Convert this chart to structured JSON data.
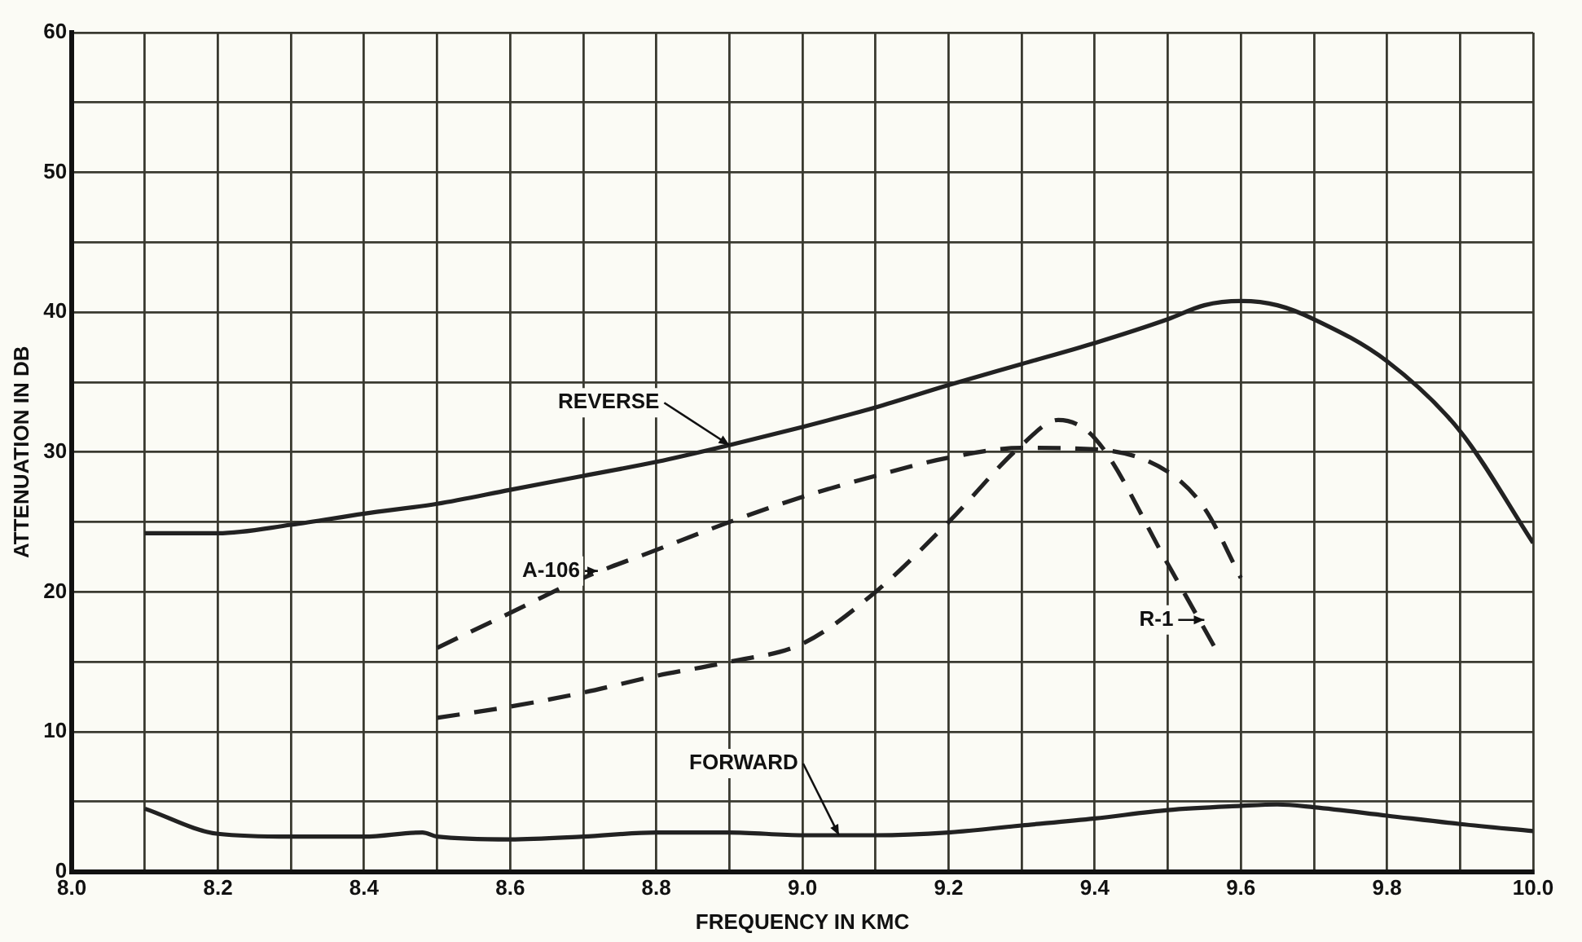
{
  "chart_data": {
    "type": "line",
    "xlabel": "FREQUENCY IN KMC",
    "ylabel": "ATTENUATION IN DB",
    "xlim": [
      8.0,
      10.0
    ],
    "xticks": [
      {
        "value": 8.0,
        "label": "8.0"
      },
      {
        "value": 8.1,
        "label": null
      },
      {
        "value": 8.2,
        "label": "8.2"
      },
      {
        "value": 8.3,
        "label": null
      },
      {
        "value": 8.4,
        "label": "8.4"
      },
      {
        "value": 8.5,
        "label": null
      },
      {
        "value": 8.6,
        "label": "8.6"
      },
      {
        "value": 8.7,
        "label": null
      },
      {
        "value": 8.8,
        "label": "8.8"
      },
      {
        "value": 8.9,
        "label": null
      },
      {
        "value": 9.0,
        "label": "9.0"
      },
      {
        "value": 9.1,
        "label": null
      },
      {
        "value": 9.2,
        "label": "9.2"
      },
      {
        "value": 9.3,
        "label": null
      },
      {
        "value": 9.4,
        "label": "9.4"
      },
      {
        "value": 9.5,
        "label": null
      },
      {
        "value": 9.6,
        "label": "9.6"
      },
      {
        "value": 9.7,
        "label": null
      },
      {
        "value": 9.8,
        "label": "9.8"
      },
      {
        "value": 9.9,
        "label": null
      },
      {
        "value": 10.0,
        "label": "10.0"
      }
    ],
    "ylim": [
      0,
      60
    ],
    "yticks": [
      0,
      {
        "value": 5,
        "label": null
      },
      10,
      {
        "value": 15,
        "label": null
      },
      20,
      {
        "value": 25,
        "label": null
      },
      30,
      {
        "value": 35,
        "label": null
      },
      40,
      {
        "value": 45,
        "label": null
      },
      50,
      {
        "value": 55,
        "label": null
      },
      60
    ],
    "grid": true,
    "legend": false,
    "marker": "none",
    "series": [
      {
        "color": "#222222",
        "line_style": "solid",
        "x": [
          8.1,
          8.2,
          8.3,
          8.4,
          8.5,
          8.6,
          8.7,
          8.8,
          8.9,
          9.0,
          9.1,
          9.2,
          9.3,
          9.4,
          9.5,
          9.55,
          9.6,
          9.65,
          9.7,
          9.8,
          9.9,
          10.0
        ],
        "values": [
          24.2,
          24.2,
          24.8,
          25.6,
          26.3,
          27.3,
          28.3,
          29.3,
          30.5,
          31.8,
          33.2,
          34.8,
          36.3,
          37.8,
          39.5,
          40.5,
          40.8,
          40.5,
          39.5,
          36.5,
          31.5,
          23.5
        ]
      },
      {
        "color": "#222222",
        "line_style": "solid",
        "x": [
          8.1,
          8.2,
          8.3,
          8.4,
          8.48,
          8.5,
          8.6,
          8.7,
          8.8,
          8.9,
          9.0,
          9.1,
          9.2,
          9.3,
          9.4,
          9.5,
          9.6,
          9.65,
          9.7,
          9.8,
          9.9,
          10.0
        ],
        "values": [
          4.5,
          2.7,
          2.5,
          2.5,
          2.8,
          2.5,
          2.3,
          2.5,
          2.8,
          2.8,
          2.6,
          2.6,
          2.8,
          3.3,
          3.8,
          4.4,
          4.7,
          4.8,
          4.6,
          4.0,
          3.4,
          2.9
        ]
      },
      {
        "color": "#222222",
        "line_style": "dashed",
        "x": [
          8.5,
          8.6,
          8.7,
          8.8,
          8.9,
          9.0,
          9.1,
          9.2,
          9.3,
          9.4,
          9.5,
          9.55,
          9.6
        ],
        "values": [
          16,
          18.5,
          21,
          23,
          25,
          26.8,
          28.3,
          29.6,
          30.3,
          30.2,
          28.6,
          26,
          21
        ]
      },
      {
        "color": "#222222",
        "line_style": "dashed",
        "x": [
          8.5,
          8.6,
          8.7,
          8.8,
          8.9,
          9.0,
          9.1,
          9.2,
          9.3,
          9.35,
          9.4,
          9.5,
          9.57
        ],
        "values": [
          11,
          11.8,
          12.8,
          14,
          15,
          16.3,
          20,
          25,
          30.5,
          32.3,
          31,
          22,
          15.5
        ]
      }
    ],
    "annotations": [
      {
        "text": "REVERSE",
        "x": 8.9,
        "y": 30.5
      },
      {
        "text": "A-106",
        "x": 8.72,
        "y": 21.5
      },
      {
        "text": "FORWARD",
        "x": 9.05,
        "y": 2.6
      },
      {
        "text": "R-1",
        "x": 9.55,
        "y": 18
      }
    ]
  }
}
